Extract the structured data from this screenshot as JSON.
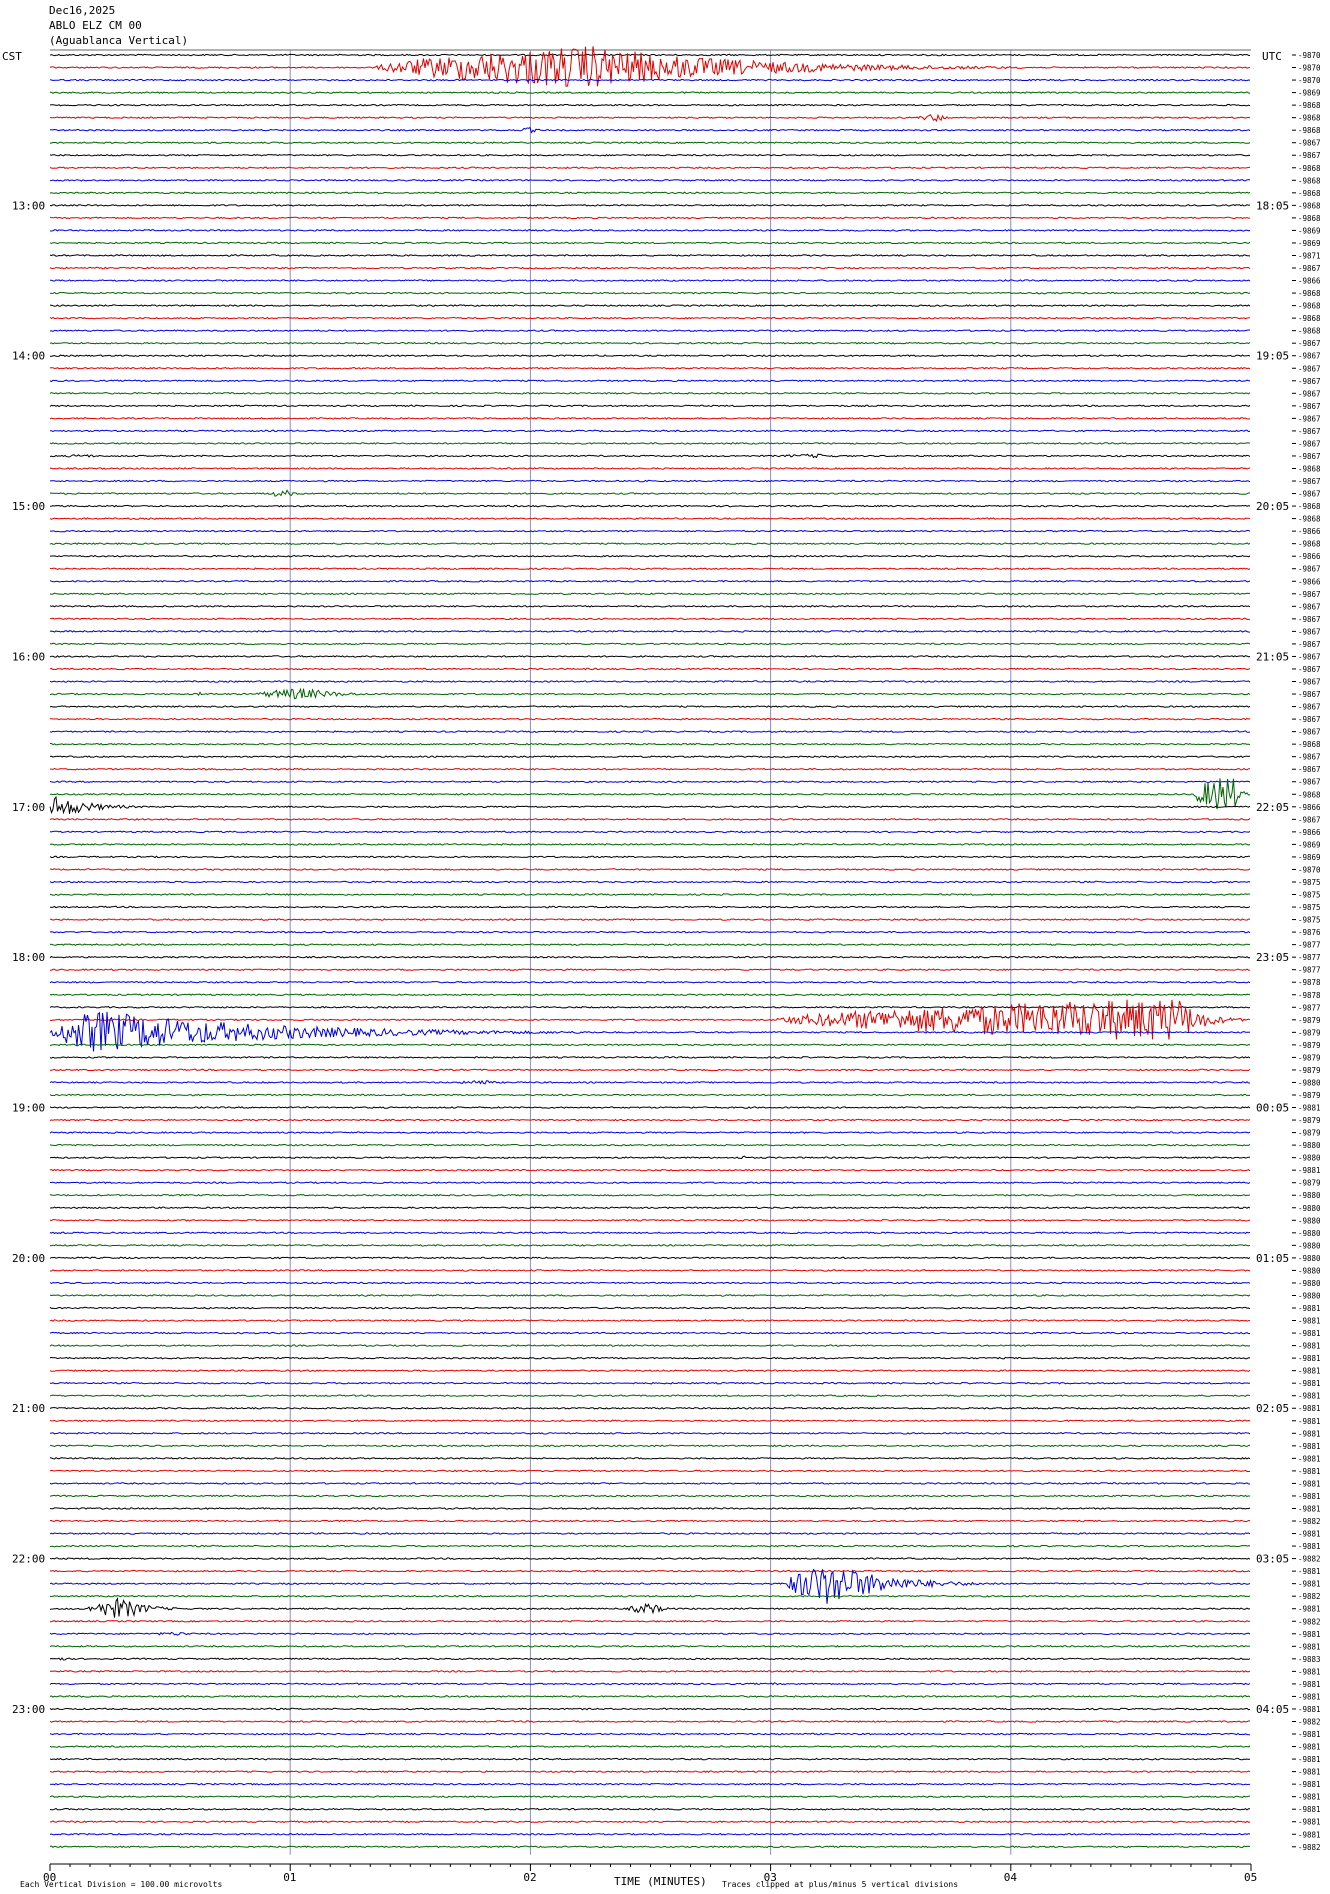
{
  "header": {
    "date": "Dec16,2025",
    "station": "ABLO ELZ CM 00",
    "site": "(Aguablanca Vertical)",
    "left_tz": "CST",
    "right_tz": "UTC",
    "right_top_label": "-9870"
  },
  "chart_data": {
    "type": "helicorder",
    "title": "ABLO ELZ CM 00",
    "xlabel": "TIME (MINUTES)",
    "xlim": [
      0,
      5
    ],
    "x_ticks": [
      "00",
      "01",
      "02",
      "03",
      "04",
      "05"
    ],
    "trace_count": 144,
    "trace_colors": [
      "#000000",
      "#e00000",
      "#0000dd",
      "#006400"
    ],
    "left_hour_labels": [
      "13:00",
      "14:00",
      "15:00",
      "16:00",
      "17:00",
      "18:00",
      "19:00",
      "20:00",
      "21:00",
      "22:00",
      "23:00"
    ],
    "right_hour_labels": [
      "18:05",
      "19:05",
      "20:05",
      "21:05",
      "22:05",
      "23:05",
      "00:05",
      "01:05",
      "02:05",
      "03:05",
      "04:05"
    ],
    "first_hour_label_trace": 12,
    "traces_per_hour": 12,
    "trace_offsets": [
      "-9870",
      "-9870",
      "-9870",
      "-9869",
      "-9868",
      "-9868",
      "-9868",
      "-9867",
      "-9867",
      "-9868",
      "-9868",
      "-9868",
      "-9868",
      "-9868",
      "-9869",
      "-9869",
      "-9871",
      "-9867",
      "-9866",
      "-9868",
      "-9868",
      "-9868",
      "-9868",
      "-9867",
      "-9867",
      "-9867",
      "-9867",
      "-9867",
      "-9867",
      "-9867",
      "-9867",
      "-9867",
      "-9867",
      "-9868",
      "-9867",
      "-9867",
      "-9868",
      "-9868",
      "-9866",
      "-9868",
      "-9866",
      "-9867",
      "-9866",
      "-9867",
      "-9867",
      "-9867",
      "-9867",
      "-9867",
      "-9867",
      "-9867",
      "-9867",
      "-9867",
      "-9867",
      "-9867",
      "-9867",
      "-9868",
      "-9867",
      "-9867",
      "-9867",
      "-9868",
      "-9866",
      "-9867",
      "-9866",
      "-9869",
      "-9869",
      "-9870",
      "-9875",
      "-9875",
      "-9875",
      "-9875",
      "-9876",
      "-9877",
      "-9877",
      "-9877",
      "-9878",
      "-9878",
      "-9877",
      "-9879",
      "-9879",
      "-9879",
      "-9879",
      "-9879",
      "-9880",
      "-9879",
      "-9881",
      "-9879",
      "-9879",
      "-9880",
      "-9880",
      "-9881",
      "-9879",
      "-9880",
      "-9880",
      "-9880",
      "-9880",
      "-9880",
      "-9880",
      "-9880",
      "-9880",
      "-9880",
      "-9881",
      "-9881",
      "-9881",
      "-9881",
      "-9881",
      "-9881",
      "-9881",
      "-9881",
      "-9881",
      "-9881",
      "-9881",
      "-9881",
      "-9881",
      "-9881",
      "-9881",
      "-9881",
      "-9881",
      "-9882",
      "-9881",
      "-9881",
      "-9882",
      "-9881",
      "-9881",
      "-9882",
      "-9881",
      "-9882",
      "-9881",
      "-9881",
      "-9883",
      "-9881",
      "-9881",
      "-9881",
      "-9881",
      "-9882",
      "-9881",
      "-9881",
      "-9881",
      "-9881",
      "-9881",
      "-9881",
      "-9881",
      "-9881",
      "-9881",
      "-9882"
    ],
    "events": [
      {
        "trace": 1,
        "start": 1.35,
        "end": 4.1,
        "peak": 2.25,
        "amp": 22
      },
      {
        "trace": 5,
        "start": 3.6,
        "end": 3.8,
        "peak": 3.7,
        "amp": 4
      },
      {
        "trace": 6,
        "start": 1.95,
        "end": 2.1,
        "peak": 2.0,
        "amp": 3
      },
      {
        "trace": 32,
        "start": 0.05,
        "end": 0.3,
        "peak": 0.15,
        "amp": 2
      },
      {
        "trace": 32,
        "start": 3.0,
        "end": 3.5,
        "peak": 3.2,
        "amp": 2
      },
      {
        "trace": 35,
        "start": 0.9,
        "end": 1.1,
        "peak": 0.98,
        "amp": 4
      },
      {
        "trace": 51,
        "start": 0.6,
        "end": 0.66,
        "peak": 0.63,
        "amp": 2
      },
      {
        "trace": 51,
        "start": 0.85,
        "end": 1.5,
        "peak": 1.05,
        "amp": 6
      },
      {
        "trace": 59,
        "start": 4.75,
        "end": 5.0,
        "peak": 4.92,
        "amp": 22
      },
      {
        "trace": 60,
        "start": 0.0,
        "end": 0.45,
        "peak": 0.02,
        "amp": 12
      },
      {
        "trace": 77,
        "start": 3.0,
        "end": 5.0,
        "peak": 4.7,
        "amp": 22
      },
      {
        "trace": 78,
        "start": 0.0,
        "end": 2.3,
        "peak": 0.2,
        "amp": 22
      },
      {
        "trace": 82,
        "start": 1.7,
        "end": 1.95,
        "peak": 1.8,
        "amp": 3
      },
      {
        "trace": 88,
        "start": 2.85,
        "end": 2.95,
        "peak": 2.9,
        "amp": 2
      },
      {
        "trace": 122,
        "start": 3.05,
        "end": 3.95,
        "peak": 3.25,
        "amp": 22
      },
      {
        "trace": 124,
        "start": 0.15,
        "end": 0.6,
        "peak": 0.3,
        "amp": 11
      },
      {
        "trace": 124,
        "start": 2.4,
        "end": 2.65,
        "peak": 2.5,
        "amp": 6
      },
      {
        "trace": 126,
        "start": 0.4,
        "end": 0.7,
        "peak": 0.55,
        "amp": 2
      },
      {
        "trace": 128,
        "start": 0.0,
        "end": 0.15,
        "peak": 0.05,
        "amp": 2
      },
      {
        "trace": 130,
        "start": 3.0,
        "end": 3.05,
        "peak": 3.02,
        "amp": 2
      }
    ]
  },
  "footer": {
    "time_label": "TIME (MINUTES)",
    "scale_note": "Each Vertical Division =  100.00 microvolts",
    "clip_note": "Traces clipped at plus/minus 5 vertical divisions"
  }
}
